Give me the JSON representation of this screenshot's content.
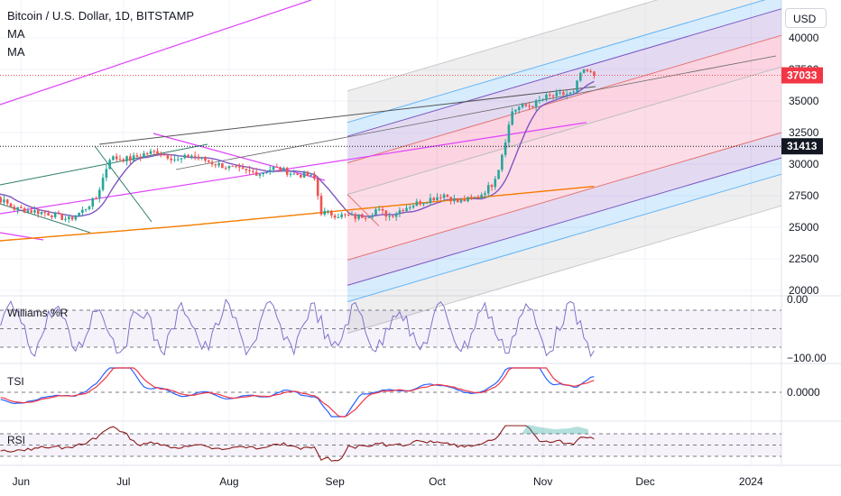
{
  "header": {
    "title": "Bitcoin / U.S. Dollar, 1D, BITSTAMP",
    "indicators": [
      "MA",
      "MA"
    ]
  },
  "currency_button": "USD",
  "panes": {
    "williams": "Williams %R",
    "tsi": "TSI",
    "rsi": "RSI"
  },
  "colors": {
    "up": "#26a69a",
    "down": "#ef5350",
    "ma_fast": "#7e57c2",
    "ma_slow": "#f57c00",
    "fork_magenta": "#e040fb",
    "channel_green": "#2e7d6b",
    "williams": "#7e74c9",
    "tsi_blue": "#2962ff",
    "tsi_red": "#f23645",
    "rsi": "#8b1a1a"
  },
  "chart_data": {
    "type": "candlestick",
    "symbol": "Bitcoin / U.S. Dollar",
    "interval": "1D",
    "exchange": "BITSTAMP",
    "x_labels": [
      "Jun",
      "Jul",
      "Aug",
      "Sep",
      "Oct",
      "Nov",
      "Dec",
      "2024"
    ],
    "price_axis": {
      "ticks": [
        20000,
        22500,
        25000,
        27500,
        30000,
        32500,
        35000,
        37500,
        40000
      ],
      "range": [
        20000,
        41500
      ]
    },
    "last_price": 37033,
    "marked_level": 31413,
    "williams_r": {
      "ticks": [
        "0.00",
        "−100.00"
      ],
      "range": [
        -100,
        0
      ]
    },
    "tsi": {
      "ticks": [
        "0.0000"
      ]
    },
    "rsi": {
      "range": [
        0,
        100
      ]
    }
  }
}
